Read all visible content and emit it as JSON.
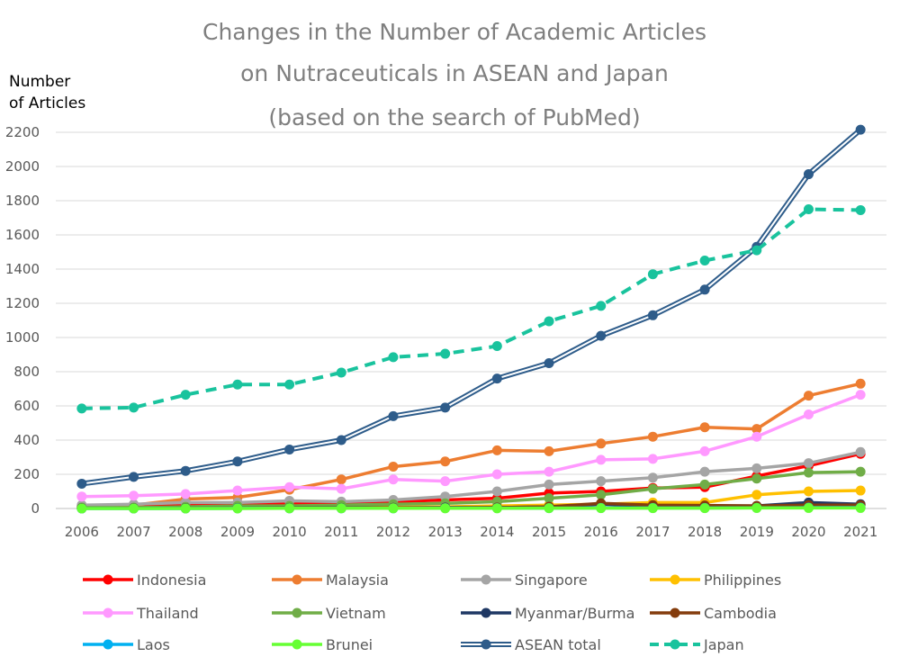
{
  "chart_data": {
    "type": "line",
    "title_lines": [
      "Changes in the Number of Academic Articles",
      "on Nutraceuticals in ASEAN and Japan",
      "(based on the search of PubMed)"
    ],
    "ylabel_lines": [
      "Number",
      "of Articles"
    ],
    "xlabel": "",
    "x": [
      "2006",
      "2007",
      "2008",
      "2009",
      "2010",
      "2011",
      "2012",
      "2013",
      "2014",
      "2015",
      "2016",
      "2017",
      "2018",
      "2019",
      "2020",
      "2021"
    ],
    "ylim": [
      0,
      2200
    ],
    "yticks": [
      0,
      200,
      400,
      600,
      800,
      1000,
      1200,
      1400,
      1600,
      1800,
      2000,
      2200
    ],
    "grid": "horizontal",
    "legend_position": "bottom",
    "series": [
      {
        "name": "Indonesia",
        "color": "#ff0000",
        "style": "solid",
        "values": [
          10,
          12,
          20,
          25,
          30,
          30,
          40,
          50,
          60,
          90,
          100,
          120,
          125,
          190,
          250,
          320
        ]
      },
      {
        "name": "Malaysia",
        "color": "#ed7d31",
        "style": "solid",
        "values": [
          15,
          20,
          55,
          65,
          110,
          170,
          245,
          275,
          340,
          335,
          380,
          420,
          475,
          465,
          660,
          730
        ]
      },
      {
        "name": "Singapore",
        "color": "#a5a5a5",
        "style": "solid",
        "values": [
          20,
          25,
          35,
          35,
          45,
          40,
          50,
          70,
          100,
          140,
          160,
          180,
          215,
          235,
          265,
          330
        ]
      },
      {
        "name": "Philippines",
        "color": "#ffc000",
        "style": "solid",
        "values": [
          2,
          2,
          3,
          5,
          5,
          5,
          8,
          10,
          15,
          20,
          25,
          35,
          35,
          80,
          100,
          105
        ]
      },
      {
        "name": "Thailand",
        "color": "#ff99ff",
        "style": "solid",
        "values": [
          70,
          75,
          85,
          105,
          125,
          115,
          170,
          160,
          200,
          215,
          285,
          290,
          335,
          420,
          550,
          665
        ]
      },
      {
        "name": "Vietnam",
        "color": "#70ad47",
        "style": "solid",
        "values": [
          5,
          5,
          10,
          15,
          15,
          20,
          25,
          30,
          40,
          60,
          80,
          115,
          140,
          175,
          210,
          215
        ]
      },
      {
        "name": "Myanmar/Burma",
        "color": "#1f3864",
        "style": "solid",
        "values": [
          1,
          1,
          2,
          2,
          3,
          3,
          4,
          5,
          5,
          10,
          25,
          15,
          15,
          15,
          35,
          25
        ]
      },
      {
        "name": "Cambodia",
        "color": "#843c0c",
        "style": "solid",
        "values": [
          1,
          1,
          1,
          2,
          2,
          2,
          3,
          3,
          5,
          10,
          30,
          20,
          18,
          15,
          20,
          20
        ]
      },
      {
        "name": "Laos",
        "color": "#00b0f0",
        "style": "solid",
        "values": [
          0,
          0,
          0,
          1,
          1,
          1,
          1,
          2,
          2,
          2,
          3,
          3,
          3,
          4,
          5,
          5
        ]
      },
      {
        "name": "Brunei",
        "color": "#66ff33",
        "style": "solid",
        "values": [
          0,
          0,
          0,
          0,
          1,
          1,
          1,
          1,
          1,
          2,
          2,
          2,
          2,
          3,
          3,
          3
        ]
      },
      {
        "name": "ASEAN total",
        "color": "#2e5c8a",
        "style": "double",
        "values": [
          145,
          185,
          220,
          275,
          345,
          400,
          540,
          590,
          760,
          850,
          1010,
          1130,
          1280,
          1530,
          1955,
          2215
        ]
      },
      {
        "name": "Japan",
        "color": "#19c39d",
        "style": "dashed",
        "values": [
          585,
          590,
          665,
          725,
          725,
          795,
          885,
          905,
          950,
          1095,
          1185,
          1370,
          1450,
          1510,
          1750,
          1745
        ]
      }
    ]
  }
}
